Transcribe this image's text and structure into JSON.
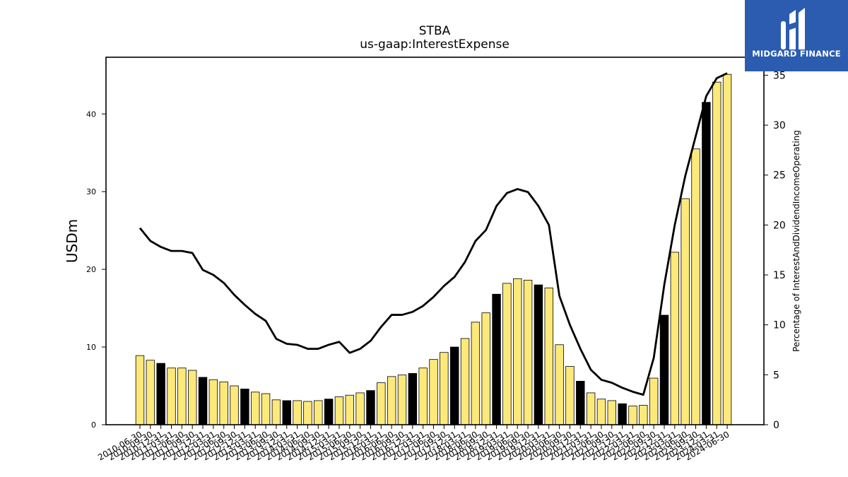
{
  "chart_data": {
    "type": "bar",
    "title": "STBA",
    "subtitle": "us-gaap:InterestExpense",
    "ylabel": "USDm",
    "y2label": "Percentage of InterestAndDividendIncomeOperating",
    "ylim": [
      0,
      47.3
    ],
    "y2lim": [
      0,
      36.8
    ],
    "yticks": [
      0,
      10,
      20,
      30,
      40
    ],
    "y2ticks": [
      0,
      5,
      10,
      15,
      20,
      25,
      30,
      35
    ],
    "grid": false,
    "categories": [
      "2010-06-30",
      "2010-09-30",
      "2010-12-31",
      "2011-03-31",
      "2011-06-30",
      "2011-09-30",
      "2011-12-31",
      "2012-03-31",
      "2012-06-30",
      "2012-09-30",
      "2012-12-31",
      "2013-03-31",
      "2013-06-30",
      "2013-09-30",
      "2013-12-31",
      "2014-03-31",
      "2014-06-30",
      "2014-09-30",
      "2014-12-31",
      "2015-03-31",
      "2015-06-30",
      "2015-09-30",
      "2015-12-31",
      "2016-03-31",
      "2016-06-30",
      "2016-09-30",
      "2016-12-31",
      "2017-03-31",
      "2017-06-30",
      "2017-09-30",
      "2017-12-31",
      "2018-03-31",
      "2018-06-30",
      "2018-09-30",
      "2018-12-31",
      "2019-03-31",
      "2019-06-30",
      "2019-09-30",
      "2019-12-31",
      "2020-03-31",
      "2020-06-30",
      "2020-09-30",
      "2020-12-31",
      "2021-03-31",
      "2021-06-30",
      "2021-09-30",
      "2021-12-31",
      "2022-03-31",
      "2022-06-30",
      "2022-09-30",
      "2022-12-31",
      "2023-03-31",
      "2023-06-30",
      "2023-09-30",
      "2023-12-31",
      "2024-03-31",
      "2024-06-30"
    ],
    "series": [
      {
        "type": "bar",
        "axis": "left",
        "values": [
          8.9,
          8.3,
          7.9,
          7.3,
          7.3,
          7.0,
          6.1,
          5.8,
          5.5,
          5.0,
          4.6,
          4.2,
          4.0,
          3.2,
          3.1,
          3.1,
          3.0,
          3.1,
          3.3,
          3.6,
          3.8,
          4.1,
          4.4,
          5.4,
          6.2,
          6.4,
          6.6,
          7.3,
          8.4,
          9.3,
          10.0,
          11.1,
          13.2,
          14.4,
          16.8,
          18.2,
          18.8,
          18.6,
          18.0,
          17.6,
          10.3,
          7.5,
          5.6,
          4.1,
          3.3,
          3.1,
          2.7,
          2.4,
          2.5,
          6.0,
          14.1,
          22.2,
          29.1,
          35.5,
          41.5,
          44.1,
          45.1
        ],
        "highlight": [
          false,
          false,
          true,
          false,
          false,
          false,
          true,
          false,
          false,
          false,
          true,
          false,
          false,
          false,
          true,
          false,
          false,
          false,
          true,
          false,
          false,
          false,
          true,
          false,
          false,
          false,
          true,
          false,
          false,
          false,
          true,
          false,
          false,
          false,
          true,
          false,
          false,
          false,
          true,
          false,
          false,
          false,
          true,
          false,
          false,
          false,
          true,
          false,
          false,
          false,
          true,
          false,
          false,
          false,
          true,
          false,
          false
        ],
        "color": "#fde97a",
        "highlight_color": "#000000"
      },
      {
        "type": "line",
        "axis": "right",
        "values": [
          19.7,
          18.4,
          17.8,
          17.4,
          17.4,
          17.2,
          15.5,
          15.0,
          14.2,
          13.0,
          12.0,
          11.1,
          10.4,
          8.6,
          8.1,
          8.0,
          7.6,
          7.6,
          8.0,
          8.3,
          7.2,
          7.6,
          8.4,
          9.8,
          11.0,
          11.0,
          11.3,
          11.9,
          12.8,
          13.9,
          14.8,
          16.3,
          18.4,
          19.5,
          21.9,
          23.2,
          23.6,
          23.3,
          21.9,
          20.0,
          12.9,
          10.0,
          7.6,
          5.5,
          4.5,
          4.2,
          3.7,
          3.3,
          3.0,
          6.7,
          14.0,
          20.0,
          24.9,
          28.9,
          32.9,
          34.7,
          35.2
        ],
        "color": "#000000"
      }
    ]
  },
  "logo": {
    "text": "MIDGARD FINANCE",
    "color": "#2b5caf"
  }
}
